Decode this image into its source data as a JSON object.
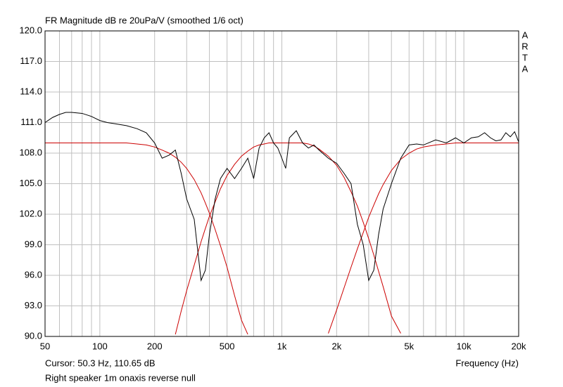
{
  "chart_data": {
    "type": "line",
    "title": "FR Magnitude dB re 20uPa/V (smoothed 1/6 oct)",
    "side_label": [
      "A",
      "R",
      "T",
      "A"
    ],
    "xlabel": "Frequency (Hz)",
    "cursor": "Cursor: 50.3 Hz, 110.65 dB",
    "note": "Right speaker 1m onaxis reverse null",
    "xscale": "log",
    "xlim": [
      50,
      20000
    ],
    "xticks": [
      50,
      100,
      200,
      500,
      {
        "value": 1000,
        "label": "1k"
      },
      {
        "value": 2000,
        "label": "2k"
      },
      {
        "value": 5000,
        "label": "5k"
      },
      {
        "value": 10000,
        "label": "10k"
      },
      {
        "value": 20000,
        "label": "20k"
      }
    ],
    "xgrid": [
      50,
      60,
      70,
      80,
      90,
      100,
      200,
      300,
      400,
      500,
      600,
      700,
      800,
      900,
      1000,
      2000,
      3000,
      4000,
      5000,
      6000,
      7000,
      8000,
      9000,
      10000,
      20000
    ],
    "ylim": [
      90,
      120
    ],
    "yticks": [
      {
        "value": 90,
        "label": "90.0"
      },
      {
        "value": 93,
        "label": "93.0"
      },
      {
        "value": 96,
        "label": "96.0"
      },
      {
        "value": 99,
        "label": "99.0"
      },
      {
        "value": 102,
        "label": "102.0"
      },
      {
        "value": 105,
        "label": "105.0"
      },
      {
        "value": 108,
        "label": "108.0"
      },
      {
        "value": 111,
        "label": "111.0"
      },
      {
        "value": 114,
        "label": "114.0"
      },
      {
        "value": 117,
        "label": "117.0"
      },
      {
        "value": 120,
        "label": "120.0"
      }
    ],
    "grid": true,
    "x": [
      50,
      55,
      60,
      65,
      70,
      80,
      90,
      100,
      110,
      120,
      140,
      160,
      180,
      200,
      220,
      240,
      260,
      280,
      300,
      330,
      360,
      380,
      400,
      430,
      460,
      500,
      550,
      600,
      650,
      700,
      750,
      800,
      850,
      900,
      950,
      1000,
      1050,
      1100,
      1200,
      1300,
      1400,
      1500,
      1600,
      1800,
      2000,
      2200,
      2400,
      2600,
      2800,
      3000,
      3200,
      3400,
      3600,
      4000,
      4500,
      5000,
      5500,
      6000,
      7000,
      8000,
      9000,
      10000,
      11000,
      12000,
      13000,
      14000,
      15000,
      16000,
      17000,
      18000,
      19000,
      20000
    ],
    "series": [
      {
        "color": "#cc0000",
        "values": [
          109.0,
          109.0,
          109.0,
          109.0,
          109.0,
          109.0,
          109.0,
          109.0,
          109.0,
          109.0,
          109.0,
          108.9,
          108.8,
          108.6,
          108.3,
          108.0,
          107.6,
          107.1,
          106.5,
          105.4,
          104.1,
          103.1,
          102.1,
          100.5,
          98.9,
          96.8,
          94.0,
          91.6,
          90.2,
          null,
          null,
          null,
          null,
          null,
          null,
          null,
          null,
          null,
          null,
          null,
          null,
          null,
          null,
          null,
          null,
          null,
          null,
          null,
          null,
          null,
          null,
          null,
          null,
          null,
          null,
          null,
          null,
          null,
          null,
          null,
          null,
          null,
          null,
          null,
          null,
          null,
          null,
          null,
          null,
          null,
          null,
          null
        ]
      },
      {
        "color": "#cc0000",
        "values": [
          null,
          null,
          null,
          null,
          null,
          null,
          null,
          null,
          null,
          null,
          null,
          null,
          null,
          null,
          null,
          null,
          90.2,
          92.5,
          94.5,
          97.0,
          99.3,
          100.6,
          101.8,
          103.2,
          104.5,
          105.8,
          106.9,
          107.7,
          108.2,
          108.6,
          108.8,
          108.9,
          109.0,
          109.0,
          109.0,
          109.0,
          109.0,
          109.0,
          109.0,
          109.0,
          108.9,
          108.7,
          108.4,
          107.7,
          106.8,
          105.6,
          104.2,
          102.8,
          101.2,
          99.6,
          98.0,
          96.4,
          94.9,
          92.0,
          90.3,
          null,
          null,
          null,
          null,
          null,
          null,
          null,
          null,
          null,
          null,
          null,
          null,
          null,
          null,
          null,
          null,
          null
        ]
      },
      {
        "color": "#cc0000",
        "values": [
          null,
          null,
          null,
          null,
          null,
          null,
          null,
          null,
          null,
          null,
          null,
          null,
          null,
          null,
          null,
          null,
          null,
          null,
          null,
          null,
          null,
          null,
          null,
          null,
          null,
          null,
          null,
          null,
          null,
          null,
          null,
          null,
          null,
          null,
          null,
          null,
          null,
          null,
          null,
          null,
          null,
          null,
          null,
          90.3,
          92.6,
          94.8,
          96.8,
          98.6,
          100.2,
          101.7,
          102.9,
          104.0,
          104.9,
          106.3,
          107.4,
          108.0,
          108.4,
          108.6,
          108.8,
          108.9,
          109.0,
          109.0,
          109.0,
          109.0,
          109.0,
          109.0,
          109.0,
          109.0,
          109.0,
          109.0,
          109.0,
          109.0
        ]
      },
      {
        "color": "#000000",
        "values": [
          111.0,
          111.5,
          111.8,
          112.0,
          112.0,
          111.9,
          111.6,
          111.2,
          111.0,
          110.9,
          110.7,
          110.4,
          110.0,
          109.0,
          107.5,
          107.8,
          108.3,
          106.0,
          103.5,
          101.5,
          95.5,
          96.5,
          100.0,
          103.5,
          105.5,
          106.5,
          105.5,
          106.5,
          107.5,
          105.5,
          108.5,
          109.5,
          110.0,
          109.0,
          108.5,
          107.5,
          106.5,
          109.5,
          110.2,
          109.0,
          108.5,
          108.8,
          108.3,
          107.5,
          107.0,
          106.0,
          105.0,
          101.0,
          99.0,
          95.5,
          96.5,
          100.0,
          102.5,
          105.0,
          107.5,
          108.8,
          108.9,
          108.8,
          109.3,
          109.0,
          109.5,
          109.0,
          109.5,
          109.6,
          110.0,
          109.5,
          109.2,
          109.3,
          110.0,
          109.6,
          110.1,
          109.1
        ]
      }
    ]
  }
}
